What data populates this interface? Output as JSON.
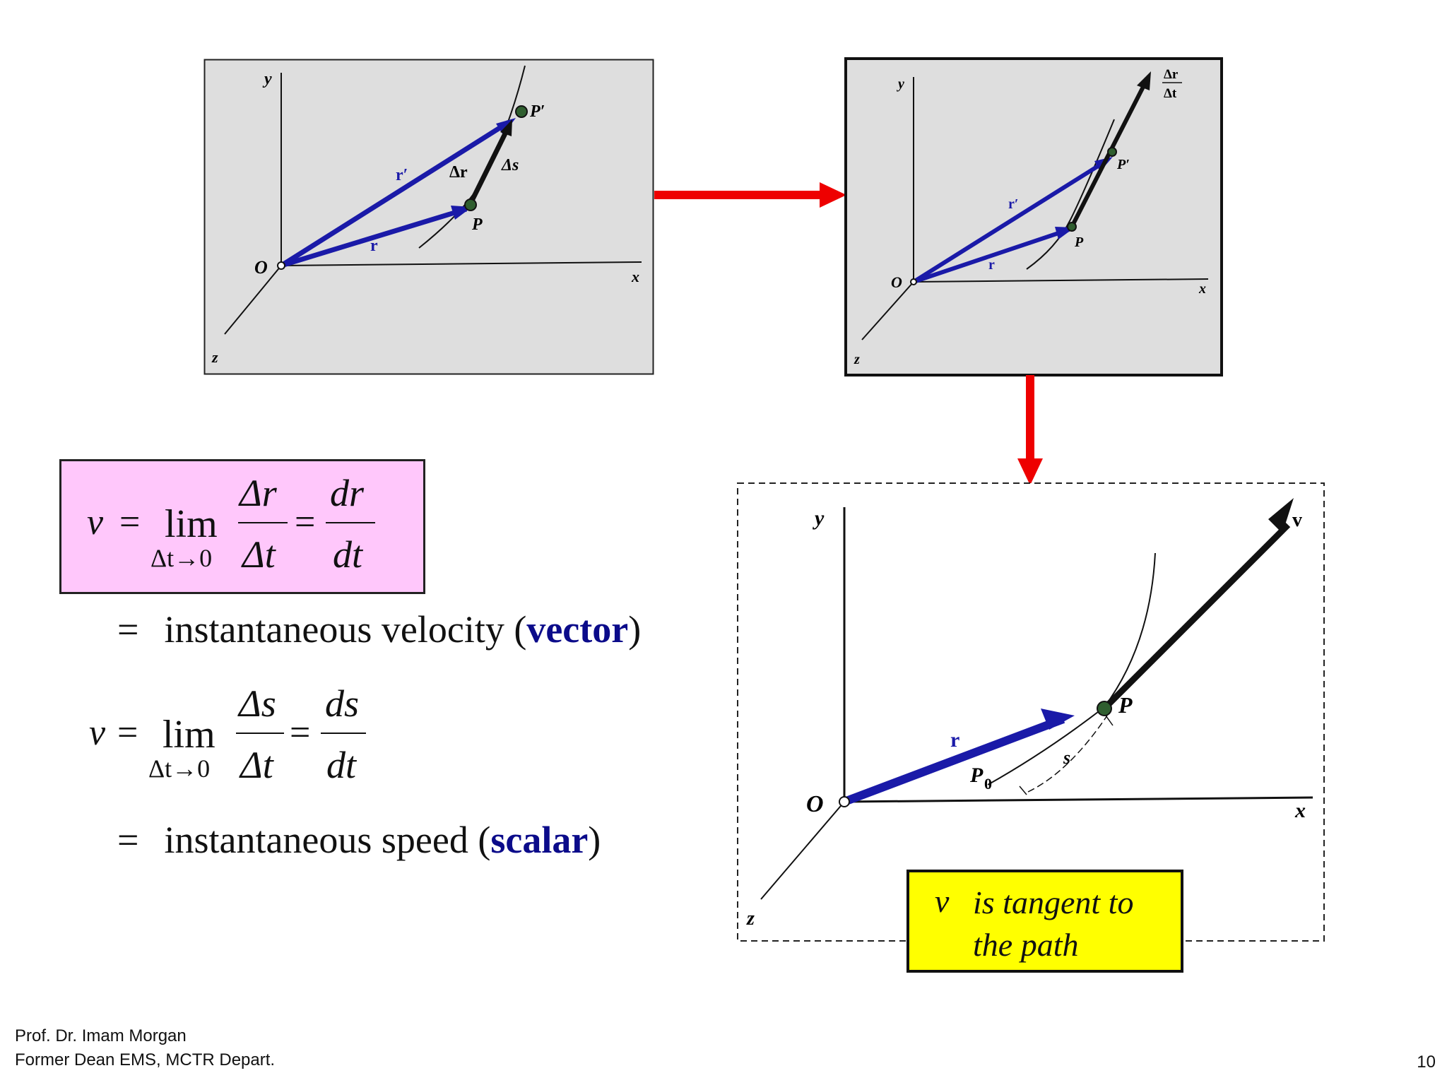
{
  "diagrams": {
    "d1": {
      "y": "y",
      "x": "x",
      "z": "z",
      "O": "O",
      "P": "P",
      "P_prime": "P′",
      "r": "r",
      "r_prime": "r′",
      "delta_r": "Δr",
      "delta_s": "Δs"
    },
    "d2": {
      "y": "y",
      "x": "x",
      "z": "z",
      "O": "O",
      "P": "P",
      "P_prime": "P′",
      "r": "r",
      "r_prime": "r′",
      "dr": "Δr",
      "dt": "Δt"
    },
    "d3": {
      "y": "y",
      "x": "x",
      "z": "z",
      "O": "O",
      "P": "P",
      "P0_base": "P",
      "P0_sub": "0",
      "r": "r",
      "s": "s",
      "v": "v"
    }
  },
  "equations": {
    "velocity": {
      "lhs": "v⃗",
      "eq": "=",
      "lim": "lim",
      "sub": "Δt→0",
      "num1": "Δr⃗",
      "den1": "Δt",
      "eq2": "=",
      "num2": "dr⃗",
      "den2": "dt"
    },
    "velocity_desc": {
      "eq": "=",
      "text": "instantaneous velocity (",
      "bold": "vector",
      "close": ")"
    },
    "speed": {
      "lhs": "v",
      "eq": "=",
      "lim": "lim",
      "sub": "Δt→0",
      "num1": "Δs",
      "den1": "Δt",
      "eq2": "=",
      "num2": "ds",
      "den2": "dt"
    },
    "speed_desc": {
      "eq": "=",
      "text": "instantaneous speed (",
      "bold": "scalar",
      "close": ")"
    }
  },
  "note": {
    "symbol": "v⃗",
    "line1": "is tangent to",
    "line2": "the path"
  },
  "footer": {
    "line1": "Prof. Dr. Imam Morgan",
    "line2": "Former Dean EMS, MCTR Depart.",
    "page": "10"
  },
  "colors": {
    "vector_blue": "#1a1aa8",
    "arrow_red": "#ee0000",
    "panel_gray": "#dedede",
    "formula_box": "#ffc7fb",
    "note_box": "#ffff00",
    "emph_blue": "#0b0b8a"
  }
}
